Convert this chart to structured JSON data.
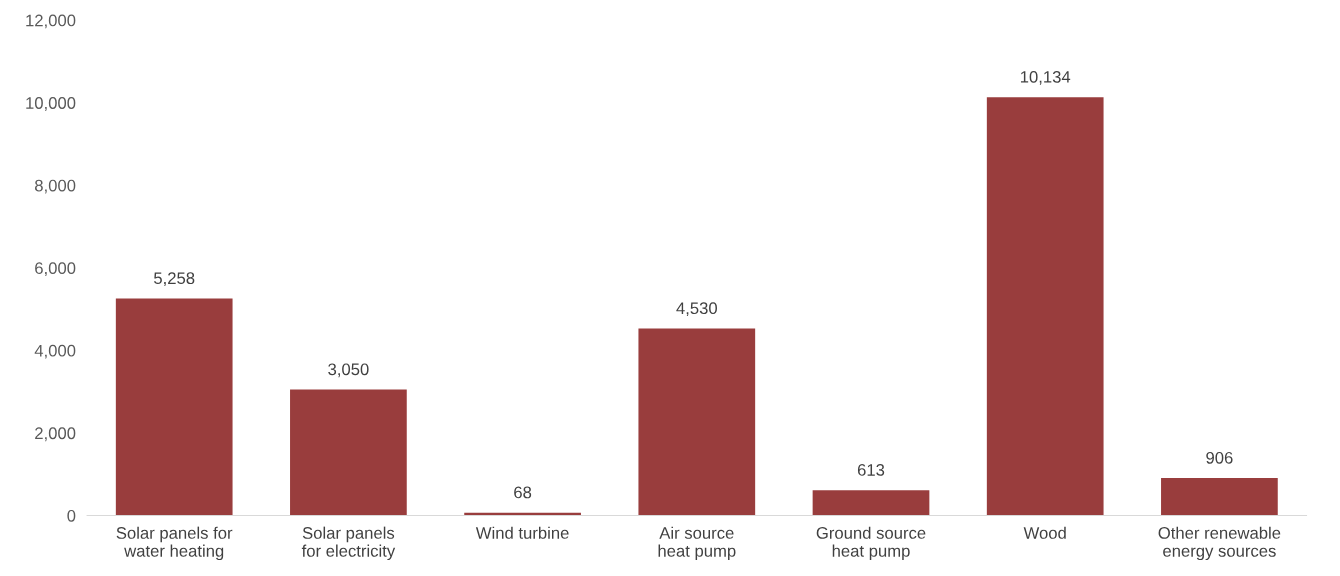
{
  "chart_data": {
    "type": "bar",
    "categories": [
      "Solar panels for water heating",
      "Solar panels for electricity",
      "Wind turbine",
      "Air source heat pump",
      "Ground source heat pump",
      "Wood",
      "Other renewable energy sources"
    ],
    "values": [
      5258,
      3050,
      68,
      4530,
      613,
      10134,
      906
    ],
    "value_labels": [
      "5,258",
      "3,050",
      "68",
      "4,530",
      "613",
      "10,134",
      "906"
    ],
    "color": "#993d3d",
    "ylim": [
      0,
      12000
    ],
    "yticks": [
      {
        "value": 0,
        "label": "0"
      },
      {
        "value": 2000,
        "label": "2,000"
      },
      {
        "value": 4000,
        "label": "4,000"
      },
      {
        "value": 6000,
        "label": "6,000"
      },
      {
        "value": 8000,
        "label": "8,000"
      },
      {
        "value": 10000,
        "label": "10,000"
      },
      {
        "value": 12000,
        "label": "12,000"
      }
    ],
    "grid": false,
    "legend": false
  }
}
